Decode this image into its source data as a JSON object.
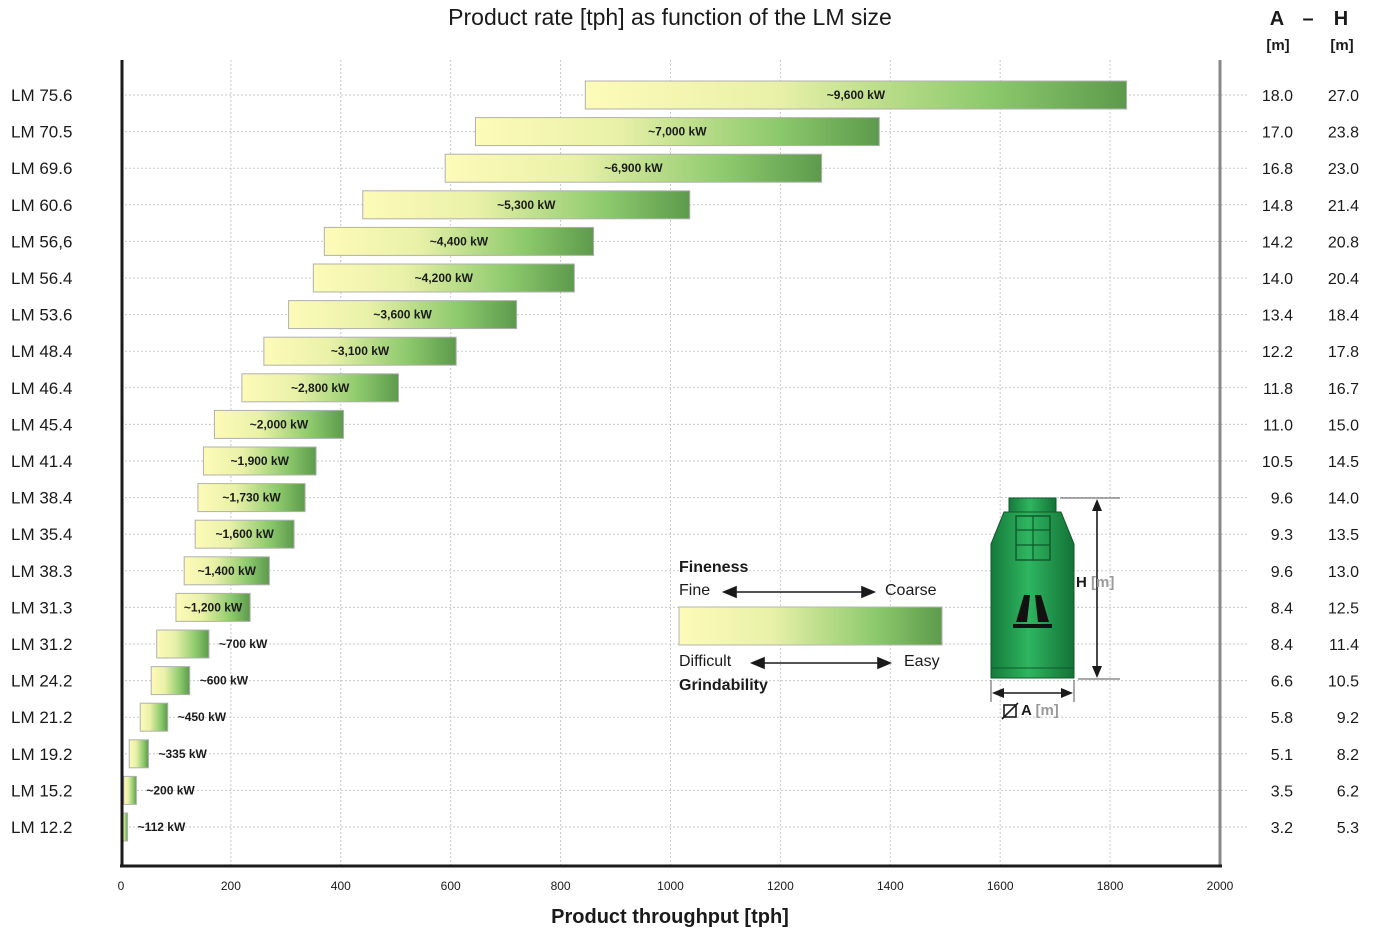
{
  "chart_data": {
    "type": "bar",
    "orientation": "horizontal",
    "title": "Product rate [tph] as function of the LM size",
    "xlabel": "Product throughput [tph]",
    "xlim": [
      0,
      2000
    ],
    "xticks": [
      0,
      200,
      400,
      600,
      800,
      1000,
      1200,
      1400,
      1600,
      1800,
      2000
    ],
    "grid": true,
    "categories": [
      "LM 75.6",
      "LM 70.5",
      "LM 69.6",
      "LM 60.6",
      "LM 56,6",
      "LM 56.4",
      "LM 53.6",
      "LM 48.4",
      "LM 46.4",
      "LM 45.4",
      "LM 41.4",
      "LM 38.4",
      "LM 35.4",
      "LM 38.3",
      "LM 31.3",
      "LM 31.2",
      "LM 24.2",
      "LM 21.2",
      "LM 19.2",
      "LM 15.2",
      "LM 12.2"
    ],
    "ranges": [
      [
        845,
        1830
      ],
      [
        645,
        1380
      ],
      [
        590,
        1275
      ],
      [
        440,
        1035
      ],
      [
        370,
        860
      ],
      [
        350,
        825
      ],
      [
        305,
        720
      ],
      [
        260,
        610
      ],
      [
        220,
        505
      ],
      [
        170,
        405
      ],
      [
        150,
        355
      ],
      [
        140,
        335
      ],
      [
        135,
        315
      ],
      [
        115,
        270
      ],
      [
        100,
        235
      ],
      [
        65,
        160
      ],
      [
        55,
        125
      ],
      [
        35,
        85
      ],
      [
        15,
        50
      ],
      [
        5,
        28
      ],
      [
        0,
        12
      ]
    ],
    "power_labels": [
      "~9,600 kW",
      "~7,000 kW",
      "~6,900 kW",
      "~5,300 kW",
      "~4,400 kW",
      "~4,200 kW",
      "~3,600 kW",
      "~3,100 kW",
      "~2,800 kW",
      "~2,000 kW",
      "~1,900 kW",
      "~1,730 kW",
      "~1,600 kW",
      "~1,400 kW",
      "~1,200 kW",
      "~700 kW",
      "~600 kW",
      "~450 kW",
      "~335 kW",
      "~200 kW",
      "~112 kW"
    ],
    "power_label_outside": [
      false,
      false,
      false,
      false,
      false,
      false,
      false,
      false,
      false,
      false,
      false,
      false,
      false,
      false,
      false,
      true,
      true,
      true,
      true,
      true,
      true
    ],
    "dimensions": {
      "A_header": "A",
      "dash": "–",
      "H_header": "H",
      "unit": "[m]",
      "A": [
        "18.0",
        "17.0",
        "16.8",
        "14.8",
        "14.2",
        "14.0",
        "13.4",
        "12.2",
        "11.8",
        "11.0",
        "10.5",
        "9.6",
        "9.3",
        "9.6",
        "8.4",
        "8.4",
        "6.6",
        "5.8",
        "5.1",
        "3.5",
        "3.2"
      ],
      "H": [
        "27.0",
        "23.8",
        "23.0",
        "21.4",
        "20.8",
        "20.4",
        "18.4",
        "17.8",
        "16.7",
        "15.0",
        "14.5",
        "14.0",
        "13.5",
        "13.0",
        "12.5",
        "11.4",
        "10.5",
        "9.2",
        "8.2",
        "6.2",
        "5.3"
      ]
    }
  },
  "legend": {
    "fineness_title": "Fineness",
    "fine": "Fine",
    "coarse": "Coarse",
    "difficult": "Difficult",
    "easy": "Easy",
    "grindability_title": "Grindability"
  },
  "mill_diagram": {
    "h_label": "H",
    "h_unit": "[m]",
    "a_label": "A",
    "a_unit": "[m]",
    "body_color": "#1f9a4e",
    "icon": "loesche-mill-icon"
  },
  "colors": {
    "gradient_start": "#fdfbb8",
    "gradient_mid": "#8cc96c",
    "gradient_end": "#5d9a4c",
    "axis": "#1a1a1a",
    "grid": "#c8c8c8"
  }
}
